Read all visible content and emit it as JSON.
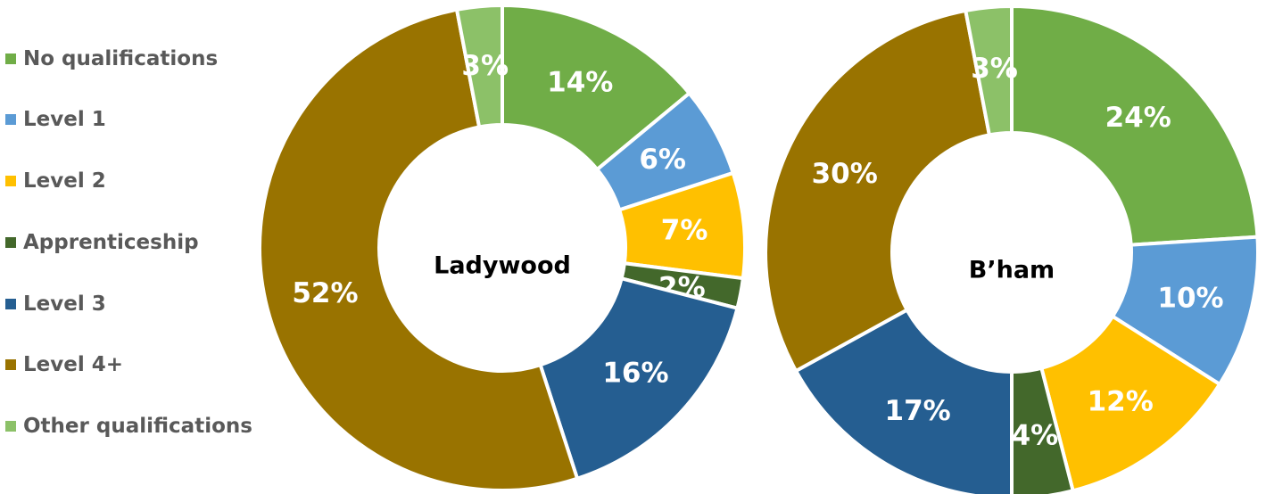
{
  "chart_data": [
    {
      "type": "pie",
      "title": "Ladywood",
      "categories": [
        "No qualifications",
        "Level 1",
        "Level 2",
        "Apprenticeship",
        "Level 3",
        "Level 4+",
        "Other qualifications"
      ],
      "values": [
        14,
        6,
        7,
        2,
        16,
        52,
        3
      ],
      "labels": [
        "14%",
        "6%",
        "7%",
        "2%",
        "16%",
        "52%",
        "3%"
      ]
    },
    {
      "type": "pie",
      "title": "B’ham",
      "categories": [
        "No qualifications",
        "Level 1",
        "Level 2",
        "Apprenticeship",
        "Level 3",
        "Level 4+",
        "Other qualifications"
      ],
      "values": [
        24,
        10,
        12,
        4,
        17,
        30,
        3
      ],
      "labels": [
        "24%",
        "10%",
        "12%",
        "4%",
        "17%",
        "30%",
        "3%"
      ]
    }
  ],
  "legend": {
    "placement": "left",
    "items": [
      {
        "label": "No qualifications",
        "color": "#70AD47"
      },
      {
        "label": "Level 1",
        "color": "#5B9BD5"
      },
      {
        "label": "Level 2",
        "color": "#FFC000"
      },
      {
        "label": "Apprenticeship",
        "color": "#43682B"
      },
      {
        "label": "Level 3",
        "color": "#255E91"
      },
      {
        "label": "Level 4+",
        "color": "#997300"
      },
      {
        "label": "Other qualifications",
        "color": "#8CC168"
      }
    ]
  }
}
